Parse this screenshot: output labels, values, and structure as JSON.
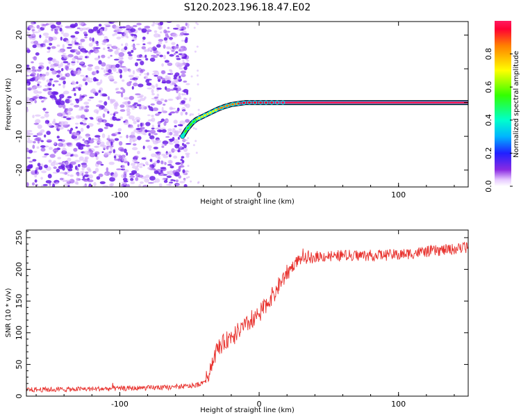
{
  "title": "S120.2023.196.18.47.E02",
  "colors": {
    "snr_line": "#e8322e",
    "ridge_low": "#8a2be2",
    "ridge_high": "#ff1a3c",
    "noise": "#7b1fe0"
  },
  "chart_data": [
    {
      "type": "heatmap",
      "xlabel": "Height of straight line (km)",
      "ylabel": "Frequency (Hz)",
      "xlim": [
        -167,
        150
      ],
      "ylim": [
        -25,
        24
      ],
      "xticks": [
        -100,
        0,
        100
      ],
      "yticks": [
        -20,
        -10,
        0,
        10,
        20
      ],
      "colorbar": {
        "label": "Normalized spectral amplitude",
        "range": [
          0.0,
          1.0
        ],
        "ticks": [
          "0.0",
          "0.2",
          "0.4",
          "0.6",
          "0.8"
        ],
        "colormap": "hsv-rainbow (white to violet to blue to cyan to green to yellow to red)"
      },
      "noise_region_x": [
        -167,
        -55
      ],
      "ridge": {
        "x": [
          -55,
          -52,
          -48,
          -45,
          -40,
          -35,
          -30,
          -25,
          -20,
          -15,
          -10,
          -5,
          0,
          10,
          20,
          40,
          60,
          80,
          100,
          120,
          150
        ],
        "frequency": [
          -10,
          -8,
          -6,
          -5,
          -4,
          -3,
          -2,
          -1.2,
          -0.6,
          -0.3,
          0,
          0,
          0,
          0,
          0,
          0,
          0,
          0,
          0,
          0,
          0
        ],
        "amplitude": [
          0.35,
          0.45,
          0.5,
          0.55,
          0.6,
          0.65,
          0.7,
          0.75,
          0.8,
          0.85,
          0.9,
          0.92,
          0.95,
          0.95,
          0.97,
          0.97,
          0.97,
          0.97,
          0.97,
          0.97,
          0.97
        ]
      }
    },
    {
      "type": "line",
      "xlabel": "Height of straight line (km)",
      "ylabel": "SNR (10 * v/v)",
      "xlim": [
        -167,
        150
      ],
      "ylim": [
        0,
        262
      ],
      "xticks": [
        -100,
        0,
        100
      ],
      "yticks": [
        0,
        50,
        100,
        150,
        200,
        250
      ],
      "series_trend": {
        "x": [
          -167,
          -100,
          -60,
          -45,
          -38,
          -35,
          -30,
          -20,
          -10,
          0,
          10,
          20,
          28,
          40,
          60,
          80,
          100,
          120,
          140,
          150
        ],
        "snr": [
          10,
          12,
          14,
          17,
          25,
          45,
          75,
          95,
          110,
          130,
          160,
          195,
          215,
          220,
          222,
          222,
          223,
          228,
          232,
          235
        ]
      }
    }
  ]
}
